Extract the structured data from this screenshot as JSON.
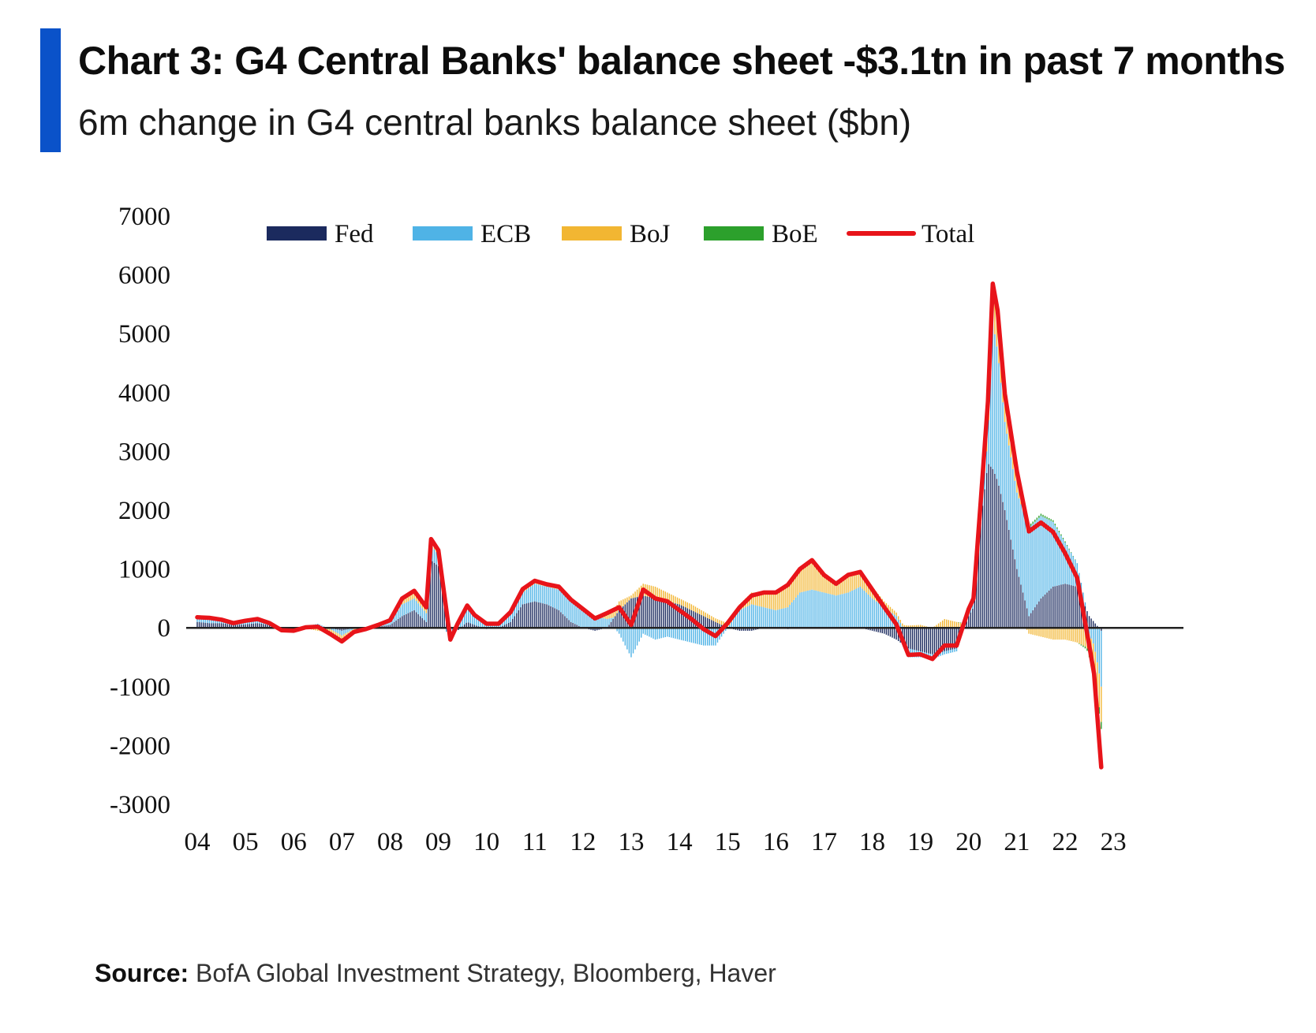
{
  "header": {
    "title": "Chart 3: G4 Central Banks' balance sheet -$3.1tn in past 7 months",
    "subtitle": "6m change in G4 central banks balance sheet ($bn)"
  },
  "footer": {
    "source_label": "Source:",
    "source_text": " BofA Global Investment Strategy, Bloomberg, Haver"
  },
  "colors": {
    "accent": "#0a52c9",
    "Fed": "#1b2a5e",
    "ECB": "#4fb3e6",
    "BoJ": "#f2b632",
    "BoE": "#2ca02c",
    "Total": "#e8141a"
  },
  "chart_data": {
    "type": "bar",
    "stacked": true,
    "legend_position": "top",
    "grid": false,
    "ylim": [
      -3000,
      7000
    ],
    "yticks": [
      "7000",
      "6000",
      "5000",
      "4000",
      "3000",
      "2000",
      "1000",
      "0",
      "-1000",
      "-2000",
      "-3000"
    ],
    "xticks": [
      "04",
      "05",
      "06",
      "07",
      "08",
      "09",
      "10",
      "11",
      "12",
      "13",
      "14",
      "15",
      "16",
      "17",
      "18",
      "19",
      "20",
      "21",
      "22",
      "23"
    ],
    "xlim": [
      2004,
      2023.8
    ],
    "x": [
      2004.0,
      2004.25,
      2004.5,
      2004.75,
      2005.0,
      2005.25,
      2005.5,
      2005.75,
      2006.0,
      2006.25,
      2006.5,
      2006.75,
      2007.0,
      2007.25,
      2007.5,
      2007.75,
      2008.0,
      2008.25,
      2008.5,
      2008.75,
      2008.85,
      2009.0,
      2009.25,
      2009.4,
      2009.6,
      2009.75,
      2010.0,
      2010.25,
      2010.5,
      2010.75,
      2011.0,
      2011.25,
      2011.5,
      2011.75,
      2012.0,
      2012.25,
      2012.5,
      2012.75,
      2013.0,
      2013.25,
      2013.5,
      2013.75,
      2014.0,
      2014.25,
      2014.5,
      2014.75,
      2015.0,
      2015.25,
      2015.5,
      2015.75,
      2016.0,
      2016.25,
      2016.5,
      2016.75,
      2017.0,
      2017.25,
      2017.5,
      2017.75,
      2018.0,
      2018.25,
      2018.5,
      2018.75,
      2019.0,
      2019.25,
      2019.5,
      2019.75,
      2020.0,
      2020.1,
      2020.25,
      2020.4,
      2020.5,
      2020.6,
      2020.75,
      2021.0,
      2021.25,
      2021.5,
      2021.75,
      2022.0,
      2022.25,
      2022.5,
      2022.6,
      2022.75
    ],
    "series": [
      {
        "name": "Fed",
        "values": [
          100,
          80,
          80,
          50,
          60,
          80,
          50,
          -20,
          -50,
          0,
          40,
          0,
          -50,
          0,
          0,
          20,
          50,
          200,
          300,
          100,
          1150,
          1050,
          0,
          -50,
          100,
          50,
          -20,
          0,
          100,
          400,
          450,
          400,
          300,
          100,
          0,
          -50,
          0,
          300,
          500,
          550,
          500,
          450,
          400,
          300,
          200,
          100,
          0,
          -50,
          -50,
          0,
          0,
          -20,
          0,
          0,
          0,
          0,
          0,
          0,
          -50,
          -100,
          -200,
          -350,
          -400,
          -450,
          -400,
          -350,
          200,
          350,
          1800,
          2800,
          2700,
          2500,
          2000,
          1000,
          200,
          500,
          700,
          750,
          700,
          200,
          100,
          -50
        ]
      },
      {
        "name": "ECB",
        "values": [
          60,
          70,
          50,
          30,
          50,
          60,
          30,
          -10,
          0,
          20,
          30,
          -20,
          -80,
          -20,
          0,
          30,
          50,
          200,
          200,
          150,
          250,
          200,
          -200,
          100,
          250,
          150,
          80,
          50,
          150,
          200,
          300,
          300,
          350,
          350,
          300,
          200,
          150,
          -100,
          -500,
          -100,
          -200,
          -150,
          -200,
          -250,
          -300,
          -300,
          0,
          300,
          400,
          350,
          300,
          350,
          600,
          650,
          600,
          550,
          600,
          700,
          500,
          350,
          200,
          -150,
          -100,
          -80,
          -50,
          -50,
          50,
          80,
          200,
          400,
          2500,
          2200,
          1500,
          1300,
          1500,
          1400,
          1100,
          700,
          400,
          -100,
          -300,
          -950
        ]
      },
      {
        "name": "BoJ",
        "values": [
          20,
          20,
          10,
          0,
          10,
          10,
          0,
          -10,
          0,
          -10,
          -50,
          -80,
          -100,
          -50,
          -20,
          0,
          30,
          80,
          100,
          70,
          80,
          50,
          0,
          20,
          30,
          20,
          10,
          20,
          20,
          50,
          40,
          30,
          40,
          20,
          20,
          10,
          100,
          150,
          50,
          200,
          200,
          150,
          100,
          100,
          80,
          60,
          80,
          100,
          200,
          250,
          300,
          400,
          400,
          500,
          300,
          200,
          300,
          250,
          200,
          100,
          60,
          40,
          50,
          0,
          150,
          100,
          50,
          30,
          80,
          500,
          500,
          600,
          400,
          300,
          -100,
          -150,
          -200,
          -200,
          -250,
          -350,
          -500,
          -600
        ]
      },
      {
        "name": "BoE",
        "values": [
          0,
          0,
          0,
          0,
          0,
          0,
          0,
          0,
          0,
          0,
          0,
          0,
          0,
          0,
          0,
          0,
          0,
          20,
          30,
          30,
          30,
          20,
          0,
          0,
          0,
          0,
          0,
          0,
          0,
          10,
          10,
          10,
          10,
          10,
          0,
          0,
          0,
          0,
          0,
          0,
          0,
          0,
          0,
          0,
          0,
          0,
          0,
          0,
          0,
          0,
          0,
          0,
          0,
          0,
          0,
          0,
          0,
          0,
          0,
          0,
          0,
          0,
          0,
          0,
          0,
          0,
          20,
          40,
          80,
          150,
          150,
          100,
          80,
          60,
          40,
          40,
          30,
          20,
          0,
          -50,
          -80,
          -120
        ]
      },
      {
        "name": "Total",
        "values": [
          180,
          170,
          140,
          80,
          120,
          150,
          80,
          -40,
          -50,
          10,
          20,
          -100,
          -230,
          -70,
          -20,
          50,
          130,
          500,
          630,
          350,
          1510,
          1320,
          -200,
          70,
          380,
          220,
          70,
          70,
          270,
          660,
          800,
          740,
          700,
          480,
          320,
          160,
          250,
          350,
          50,
          650,
          500,
          450,
          300,
          150,
          -20,
          -140,
          80,
          350,
          550,
          600,
          600,
          730,
          1000,
          1150,
          900,
          750,
          900,
          950,
          650,
          350,
          60,
          -460,
          -450,
          -530,
          -300,
          -300,
          320,
          500,
          2160,
          3850,
          5850,
          5400,
          3980,
          2660,
          1640,
          1790,
          1630,
          1270,
          850,
          -300,
          -780,
          -2370
        ]
      }
    ]
  }
}
